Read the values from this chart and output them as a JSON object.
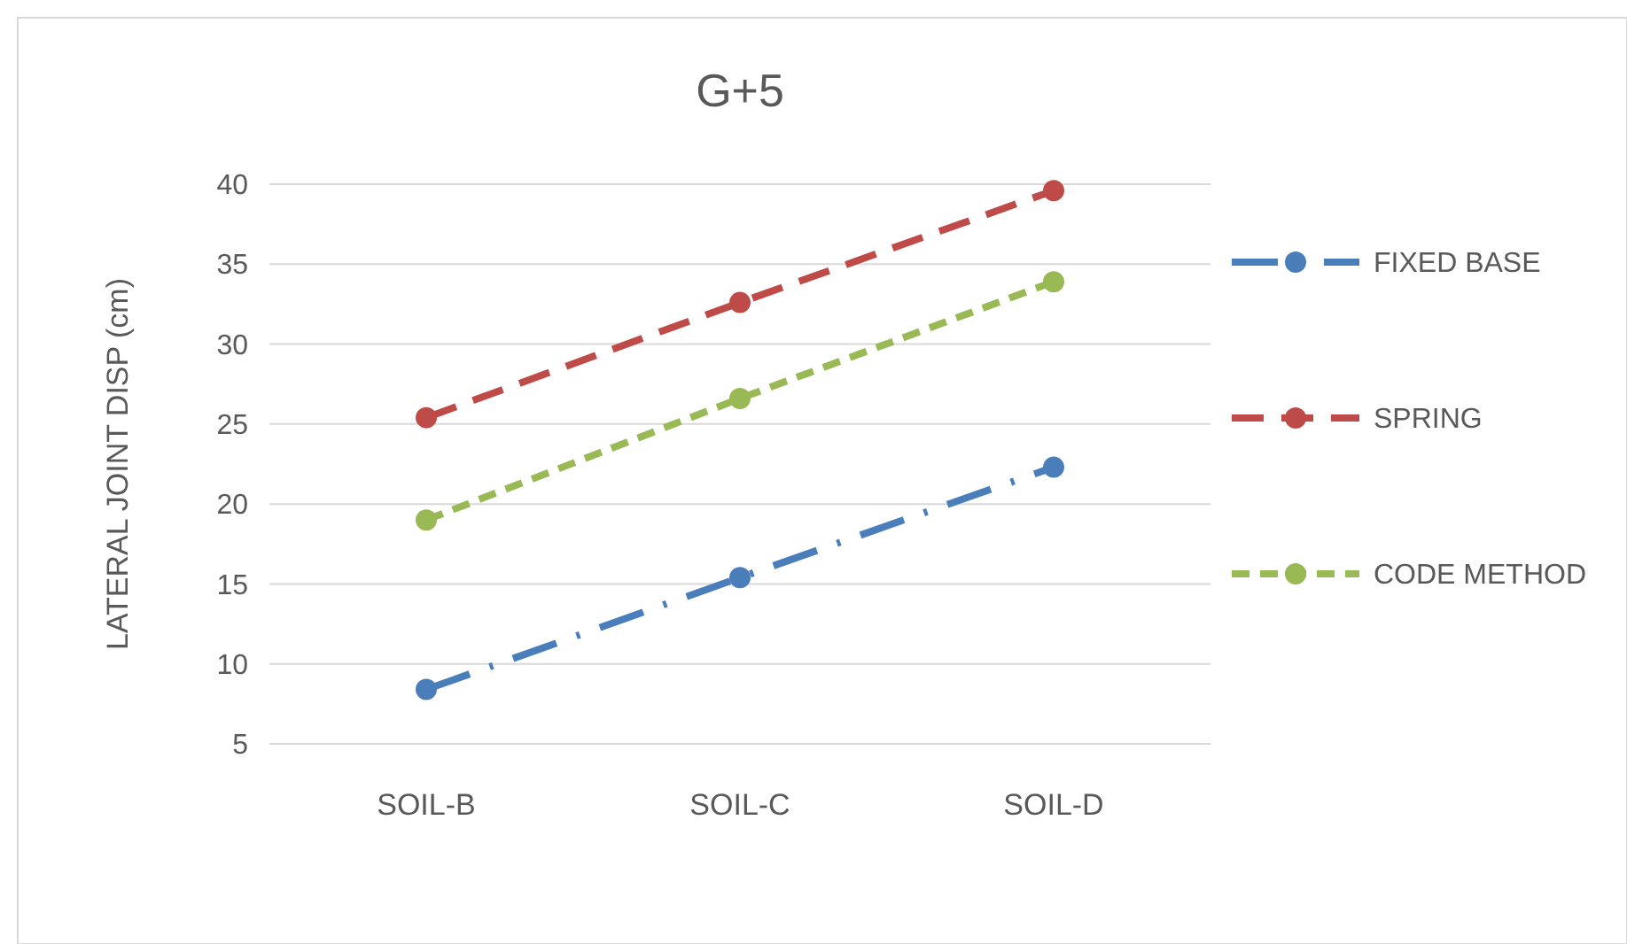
{
  "chart_data": {
    "type": "line",
    "title": "G+5",
    "ylabel": "LATERAL JOINT DISP (cm)",
    "categories": [
      "SOIL-B",
      "SOIL-C",
      "SOIL-D"
    ],
    "series": [
      {
        "name": "FIXED BASE",
        "color": "#4a7ebb",
        "values": [
          8.4,
          15.4,
          22.3
        ],
        "line_style": "dashdot"
      },
      {
        "name": "SPRING",
        "color": "#be4b48",
        "values": [
          25.4,
          32.6,
          39.6
        ],
        "line_style": "dashed"
      },
      {
        "name": "CODE METHOD",
        "color": "#98b954",
        "values": [
          19,
          26.6,
          33.9
        ],
        "line_style": "dotted"
      }
    ],
    "ylim": [
      5,
      40
    ],
    "yticks": [
      5,
      10,
      15,
      20,
      25,
      30,
      35,
      40
    ],
    "grid": "y",
    "legend": "right",
    "marker": "circle"
  }
}
